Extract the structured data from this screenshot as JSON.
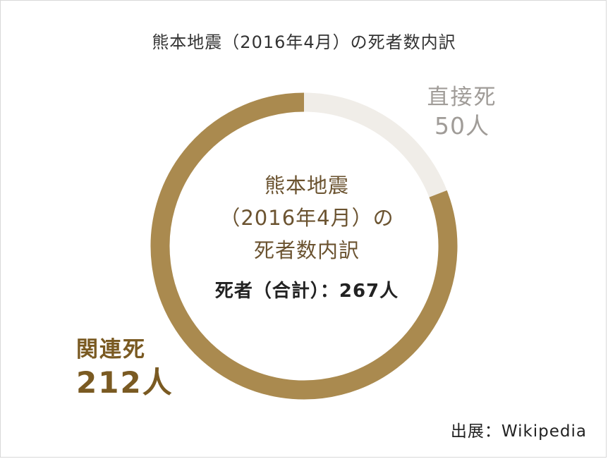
{
  "title": "熊本地震（2016年4月）の死者数内訳",
  "center": {
    "line1": "熊本地震",
    "line2": "（2016年4月）の",
    "line3": "死者数内訳",
    "total_label": "死者（合計）：267人"
  },
  "source": "出展：Wikipedia",
  "colors": {
    "related": "#aa8a4f",
    "direct": "#f0ede8"
  },
  "chart_data": {
    "type": "pie",
    "title": "熊本地震（2016年4月）の死者数内訳",
    "total": 267,
    "slices": [
      {
        "label": "直接死",
        "value": 50,
        "display": "50人",
        "color": "#f0ede8"
      },
      {
        "label": "関連死",
        "value": 212,
        "display": "212人",
        "color": "#aa8a4f"
      }
    ]
  }
}
